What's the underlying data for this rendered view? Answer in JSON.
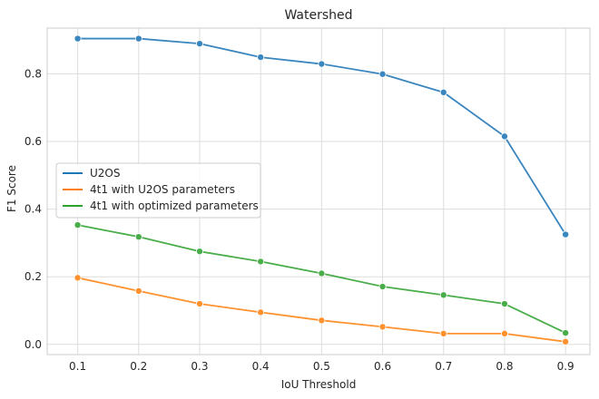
{
  "chart_data": {
    "type": "line",
    "title": "Watershed",
    "xlabel": "IoU Threshold",
    "ylabel": "F1 Score",
    "x": [
      0.1,
      0.2,
      0.3,
      0.4,
      0.5,
      0.6,
      0.7,
      0.8,
      0.9
    ],
    "x_tick_labels": [
      "0.1",
      "0.2",
      "0.3",
      "0.4",
      "0.5",
      "0.6",
      "0.7",
      "0.8",
      "0.9"
    ],
    "y_ticks": [
      0.0,
      0.2,
      0.4,
      0.6,
      0.8
    ],
    "y_tick_labels": [
      "0.0",
      "0.2",
      "0.4",
      "0.6",
      "0.8"
    ],
    "xlim": [
      0.05,
      0.94
    ],
    "ylim": [
      -0.03,
      0.935
    ],
    "grid": true,
    "legend_position": "center-left",
    "series": [
      {
        "name": "U2OS",
        "color": "#3a86bf",
        "legend_color": "#1f77b4",
        "values": [
          0.904,
          0.904,
          0.889,
          0.849,
          0.829,
          0.799,
          0.745,
          0.615,
          0.325
        ]
      },
      {
        "name": "4t1 with U2OS parameters",
        "color": "#ff922e",
        "legend_color": "#ff7f0e",
        "values": [
          0.197,
          0.158,
          0.12,
          0.095,
          0.071,
          0.052,
          0.032,
          0.032,
          0.008
        ]
      },
      {
        "name": "4t1 with optimized parameters",
        "color": "#49ad49",
        "legend_color": "#2ca02c",
        "values": [
          0.353,
          0.318,
          0.275,
          0.245,
          0.21,
          0.171,
          0.146,
          0.12,
          0.034
        ]
      }
    ]
  }
}
